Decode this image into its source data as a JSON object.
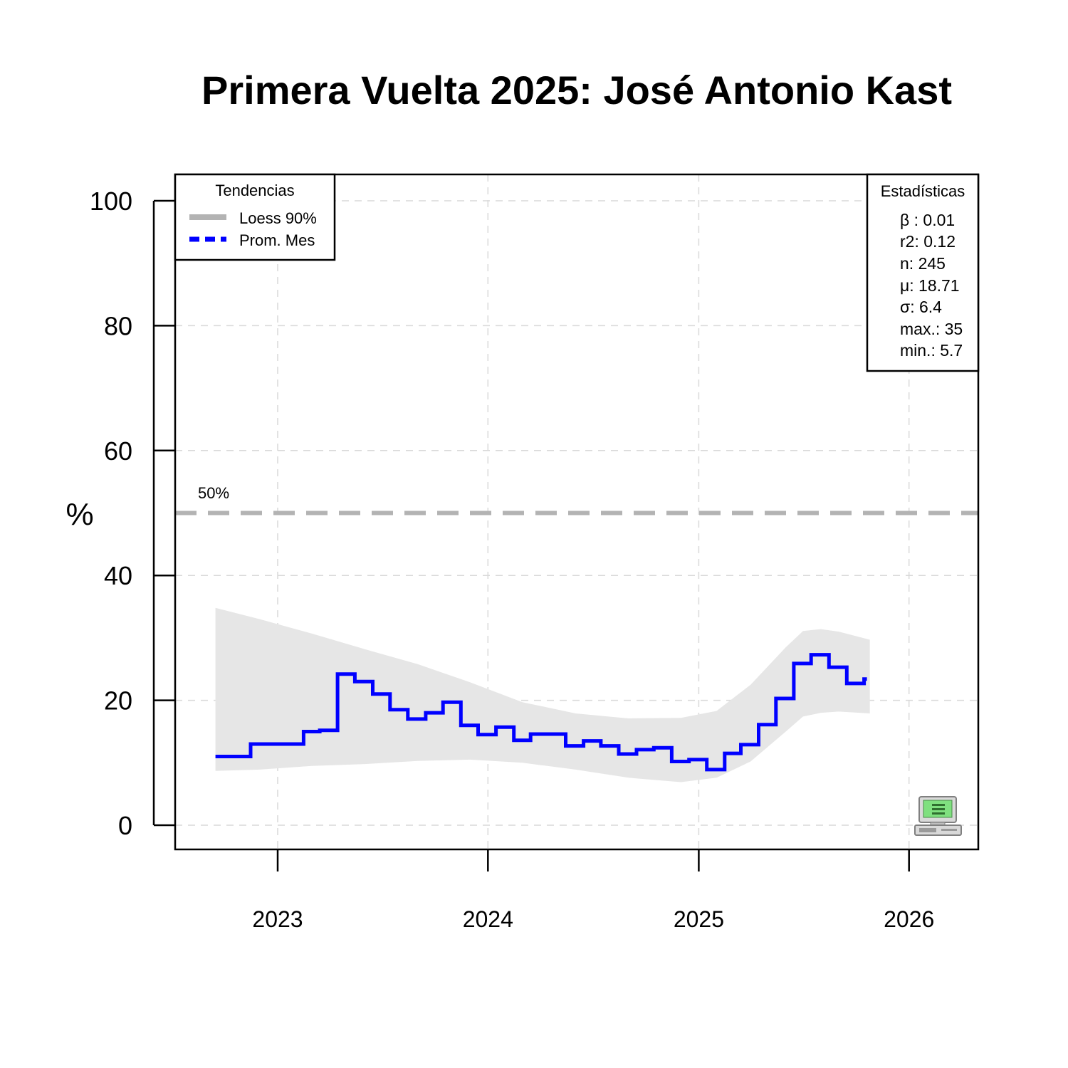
{
  "chart_data": {
    "type": "line",
    "title": "Primera Vuelta 2025: José Antonio Kast",
    "ylabel": "%",
    "xlabel": "",
    "ylim": [
      0,
      100
    ],
    "yticks": [
      "0",
      "20",
      "40",
      "60",
      "80",
      "100"
    ],
    "xticks": [
      "2023",
      "2024",
      "2025",
      "2026"
    ],
    "grid": true,
    "reference_line": {
      "value": 50,
      "label": "50%"
    },
    "legend": {
      "title": "Tendencias",
      "position": "top-left",
      "entries": [
        {
          "label": "Loess 90%",
          "color": "#b3b3b3"
        },
        {
          "label": "Prom. Mes",
          "color": "#0000ff"
        }
      ]
    },
    "stats": {
      "title": "Estadísticas",
      "position": "top-right",
      "lines": [
        "β : 0.01",
        "r2: 0.12",
        "n: 245",
        "μ: 18.71",
        "σ: 6.4",
        "max.: 35",
        "min.: 5.7"
      ]
    },
    "series": [
      {
        "name": "Prom. Mes",
        "color": "#0000ff",
        "step": [
          {
            "x": "2022-09",
            "y": 11.0
          },
          {
            "x": "2022-10",
            "y": 11.0
          },
          {
            "x": "2022-11",
            "y": 13.0
          },
          {
            "x": "2022-12",
            "y": 13.0
          },
          {
            "x": "2023-01",
            "y": 13.0
          },
          {
            "x": "2023-02",
            "y": 15.0
          },
          {
            "x": "2023-03",
            "y": 15.2
          },
          {
            "x": "2023-04",
            "y": 24.2
          },
          {
            "x": "2023-05",
            "y": 23.0
          },
          {
            "x": "2023-06",
            "y": 21.0
          },
          {
            "x": "2023-07",
            "y": 18.5
          },
          {
            "x": "2023-08",
            "y": 17.0
          },
          {
            "x": "2023-09",
            "y": 18.0
          },
          {
            "x": "2023-10",
            "y": 19.7
          },
          {
            "x": "2023-11",
            "y": 16.0
          },
          {
            "x": "2023-12",
            "y": 14.5
          },
          {
            "x": "2024-01",
            "y": 15.7
          },
          {
            "x": "2024-02",
            "y": 13.6
          },
          {
            "x": "2024-03",
            "y": 14.6
          },
          {
            "x": "2024-04",
            "y": 14.6
          },
          {
            "x": "2024-05",
            "y": 12.7
          },
          {
            "x": "2024-06",
            "y": 13.5
          },
          {
            "x": "2024-07",
            "y": 12.7
          },
          {
            "x": "2024-08",
            "y": 11.4
          },
          {
            "x": "2024-09",
            "y": 12.1
          },
          {
            "x": "2024-10",
            "y": 12.4
          },
          {
            "x": "2024-11",
            "y": 10.2
          },
          {
            "x": "2024-12",
            "y": 10.5
          },
          {
            "x": "2025-01",
            "y": 8.9
          },
          {
            "x": "2025-02",
            "y": 11.5
          },
          {
            "x": "2025-03",
            "y": 12.9
          },
          {
            "x": "2025-04",
            "y": 16.1
          },
          {
            "x": "2025-05",
            "y": 20.3
          },
          {
            "x": "2025-06",
            "y": 25.9
          },
          {
            "x": "2025-07",
            "y": 27.3
          },
          {
            "x": "2025-08",
            "y": 25.3
          },
          {
            "x": "2025-09",
            "y": 22.7
          },
          {
            "x": "2025-10",
            "y": 23.4
          }
        ]
      },
      {
        "name": "Loess 90%",
        "color": "#e6e6e6",
        "band": [
          {
            "x": "2022-09-15",
            "lower": 8.7,
            "upper": 34.8
          },
          {
            "x": "2022-12-01",
            "lower": 8.9,
            "upper": 33.0
          },
          {
            "x": "2023-03-01",
            "lower": 9.5,
            "upper": 30.7
          },
          {
            "x": "2023-06-01",
            "lower": 9.8,
            "upper": 28.2
          },
          {
            "x": "2023-09-01",
            "lower": 10.3,
            "upper": 25.8
          },
          {
            "x": "2023-12-01",
            "lower": 10.5,
            "upper": 22.9
          },
          {
            "x": "2024-03-01",
            "lower": 10.0,
            "upper": 19.7
          },
          {
            "x": "2024-06-01",
            "lower": 8.9,
            "upper": 17.9
          },
          {
            "x": "2024-09-01",
            "lower": 7.6,
            "upper": 17.1
          },
          {
            "x": "2024-12-01",
            "lower": 6.9,
            "upper": 17.2
          },
          {
            "x": "2025-02-01",
            "lower": 7.6,
            "upper": 18.3
          },
          {
            "x": "2025-04-01",
            "lower": 10.2,
            "upper": 22.5
          },
          {
            "x": "2025-06-01",
            "lower": 15.0,
            "upper": 28.5
          },
          {
            "x": "2025-07-01",
            "lower": 17.4,
            "upper": 31.1
          },
          {
            "x": "2025-08-01",
            "lower": 18.0,
            "upper": 31.4
          },
          {
            "x": "2025-09-01",
            "lower": 18.2,
            "upper": 31.0
          },
          {
            "x": "2025-10-25",
            "lower": 17.9,
            "upper": 29.7
          }
        ]
      }
    ]
  }
}
